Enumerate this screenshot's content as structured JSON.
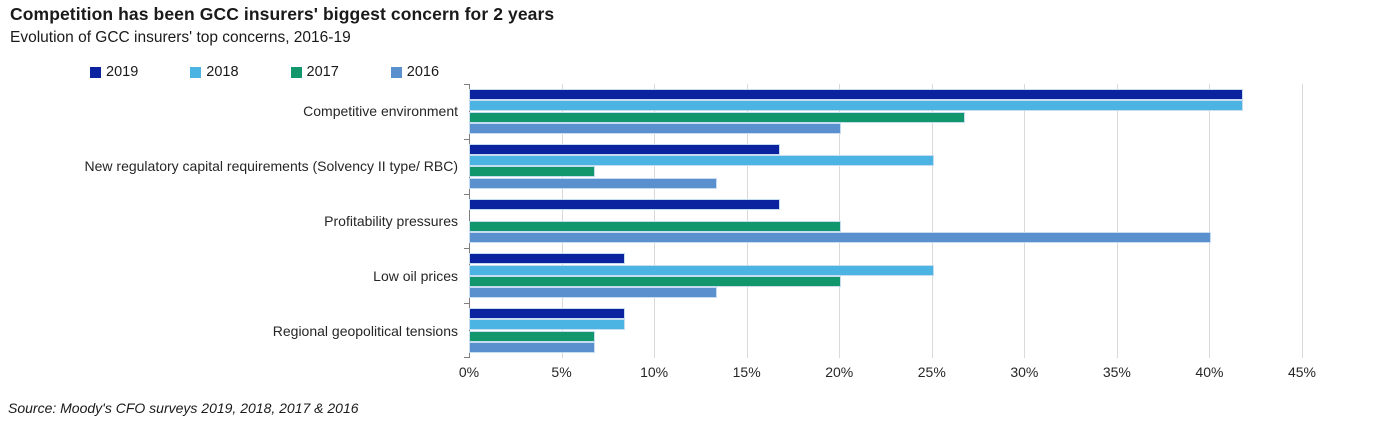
{
  "header": {
    "title": "Competition has been GCC insurers' biggest concern for 2 years",
    "subtitle": "Evolution of GCC insurers' top concerns, 2016-19"
  },
  "source": "Source: Moody's CFO surveys 2019, 2018, 2017 & 2016",
  "colors": {
    "grid": "#d9d9d9",
    "axis": "#7f7f7f",
    "series_2019": "#0b239e",
    "series_2018": "#4cb4e2",
    "series_2017": "#12976d",
    "series_2016": "#5b90cf"
  },
  "chart_data": {
    "type": "bar",
    "orientation": "horizontal",
    "title": "Competition has been GCC insurers' biggest concern for 2 years",
    "subtitle": "Evolution of GCC insurers' top concerns, 2016-19",
    "categories": [
      "Competitive environment",
      "New regulatory capital requirements (Solvency II type/ RBC)",
      "Profitability pressures",
      "Low oil prices",
      "Regional geopolitical tensions"
    ],
    "series": [
      {
        "name": "2019",
        "color": "#0b239e",
        "values": [
          41.7,
          16.7,
          16.7,
          8.3,
          8.3
        ]
      },
      {
        "name": "2018",
        "color": "#4cb4e2",
        "values": [
          41.7,
          25.0,
          0.0,
          25.0,
          8.3
        ]
      },
      {
        "name": "2017",
        "color": "#12976d",
        "values": [
          26.7,
          6.7,
          20.0,
          20.0,
          6.7
        ]
      },
      {
        "name": "2016",
        "color": "#5b90cf",
        "values": [
          20.0,
          13.3,
          40.0,
          13.3,
          6.7
        ]
      }
    ],
    "xlabel": "",
    "ylabel": "",
    "xlim": [
      0,
      45
    ],
    "x_tick_labels": [
      "0%",
      "5%",
      "10%",
      "15%",
      "20%",
      "25%",
      "30%",
      "35%",
      "40%",
      "45%"
    ],
    "grid": "vertical-only",
    "legend_position": "top-left",
    "legend_order": [
      "2019",
      "2018",
      "2017",
      "2016"
    ]
  }
}
